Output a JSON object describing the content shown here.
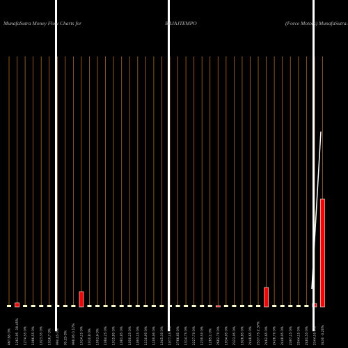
{
  "chart_data": {
    "type": "bar",
    "title_left": "MunafaSutra  Money Flow  Charts for",
    "title_center": "BAJAJTEMPO",
    "title_right": "(Force  Motors) MunafaSutra.com",
    "categories": [
      "467.65 0%",
      "1261.95 -19.45%",
      "1274.55 0%",
      "1086.55 0%",
      "1023.35 0%",
      "1016.7 0%",
      "994.45 0%",
      "05.25 0%",
      "998.95 0.17%",
      "1014.25 0%",
      "1010.8 0%",
      "1003.6 0%",
      "1084.25 0%",
      "1015.85 0%",
      "1081.85 0%",
      "1050.25 0%",
      "1093.15 0%",
      "1110.95 0%",
      "1109.95 0%",
      "1045.35 0%",
      "1077.15 0%",
      "2766.65 0%",
      "1314.75 0%",
      "2227.70 0%",
      "1239.50 0%",
      "1285.1 0%",
      "2682.70 0%",
      "1934.95 0%",
      "2323.95 0%",
      "1926.85 0%",
      "2448.65 0%",
      "2537.75 2.37%",
      "2462.65 0%",
      "2426.70 0%",
      "2448.95 0%",
      "2397.15 0%",
      "2544.15 0%",
      "2481.55 0%",
      "2344.55 0%",
      "3430 -3.20%"
    ],
    "values": [
      3,
      6,
      3,
      3,
      3,
      3,
      3,
      3,
      3,
      22,
      3,
      3,
      3,
      3,
      3,
      3,
      3,
      3,
      3,
      3,
      3,
      3,
      3,
      3,
      3,
      3,
      2,
      3,
      3,
      3,
      3,
      3,
      28,
      3,
      3,
      3,
      3,
      3,
      5,
      155
    ],
    "colors": [
      "#ffffcc",
      "#ff0000",
      "#ffffcc",
      "#ffffcc",
      "#ffffcc",
      "#ffffcc",
      "#ffffcc",
      "#ffffcc",
      "#ffffcc",
      "#ff0000",
      "#ffffcc",
      "#ffffcc",
      "#ffffcc",
      "#ffffcc",
      "#ffffcc",
      "#ffffcc",
      "#ffffcc",
      "#ffffcc",
      "#ffffcc",
      "#ffffcc",
      "#ffffcc",
      "#ffffcc",
      "#ffffcc",
      "#ffffcc",
      "#ffffcc",
      "#ffffcc",
      "#ff0000",
      "#ffffcc",
      "#ffffcc",
      "#ffffcc",
      "#ffffcc",
      "#ffffcc",
      "#ff0000",
      "#ffffcc",
      "#ffffcc",
      "#ffffcc",
      "#ffffcc",
      "#ffffcc",
      "#ff0000",
      "#ff0000"
    ],
    "ylim": [
      0,
      360
    ]
  }
}
